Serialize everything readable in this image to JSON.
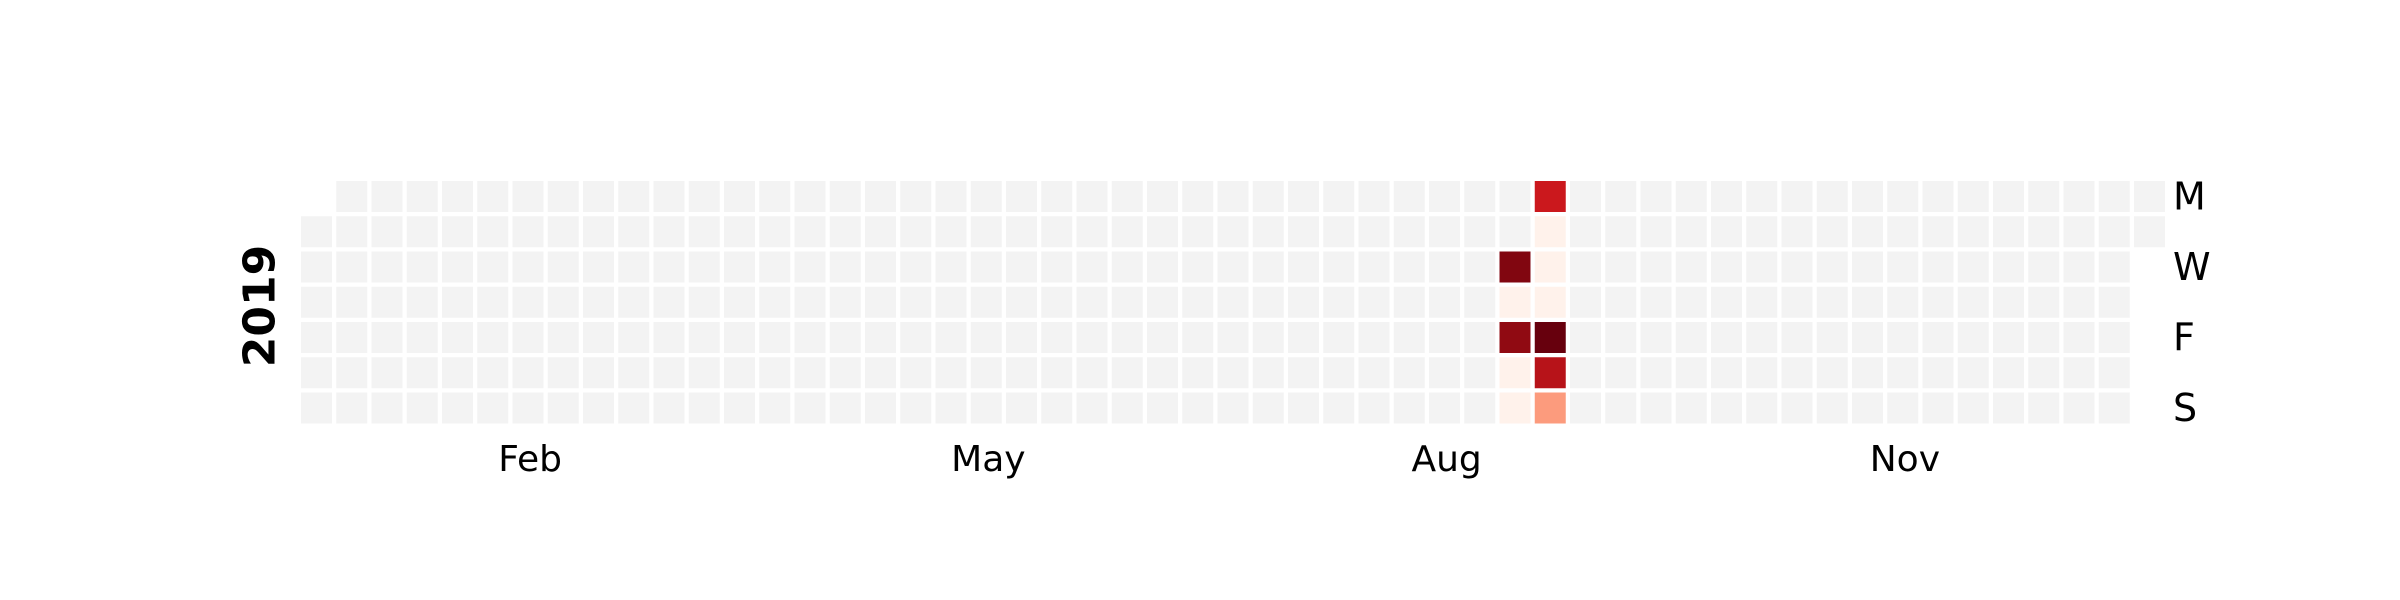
{
  "chart_data": {
    "type": "heatmap",
    "year_label": "2019",
    "month_labels": [
      {
        "label": "Feb",
        "week": 6.5
      },
      {
        "label": "May",
        "week": 19.5
      },
      {
        "label": "Aug",
        "week": 32.5
      },
      {
        "label": "Nov",
        "week": 45.5
      }
    ],
    "weekday_labels": [
      {
        "label": "M",
        "day": 0
      },
      {
        "label": "W",
        "day": 2
      },
      {
        "label": "F",
        "day": 4
      },
      {
        "label": "S",
        "day": 6
      }
    ],
    "first_week_start_day": 1,
    "last_week_end_day": 1,
    "num_weeks": 53,
    "empty_color": "#f3f3f3",
    "nonzero_cells": [
      {
        "week": 35,
        "day": 0,
        "level": 0.75
      },
      {
        "week": 35,
        "day": 1,
        "level": 0.02
      },
      {
        "week": 34,
        "day": 2,
        "level": 0.95
      },
      {
        "week": 35,
        "day": 2,
        "level": 0.02
      },
      {
        "week": 34,
        "day": 3,
        "level": 0.02
      },
      {
        "week": 35,
        "day": 3,
        "level": 0.02
      },
      {
        "week": 34,
        "day": 4,
        "level": 0.92
      },
      {
        "week": 35,
        "day": 4,
        "level": 1.0
      },
      {
        "week": 34,
        "day": 5,
        "level": 0.02
      },
      {
        "week": 35,
        "day": 5,
        "level": 0.82
      },
      {
        "week": 34,
        "day": 6,
        "level": 0.02
      },
      {
        "week": 35,
        "day": 6,
        "level": 0.35
      }
    ]
  }
}
